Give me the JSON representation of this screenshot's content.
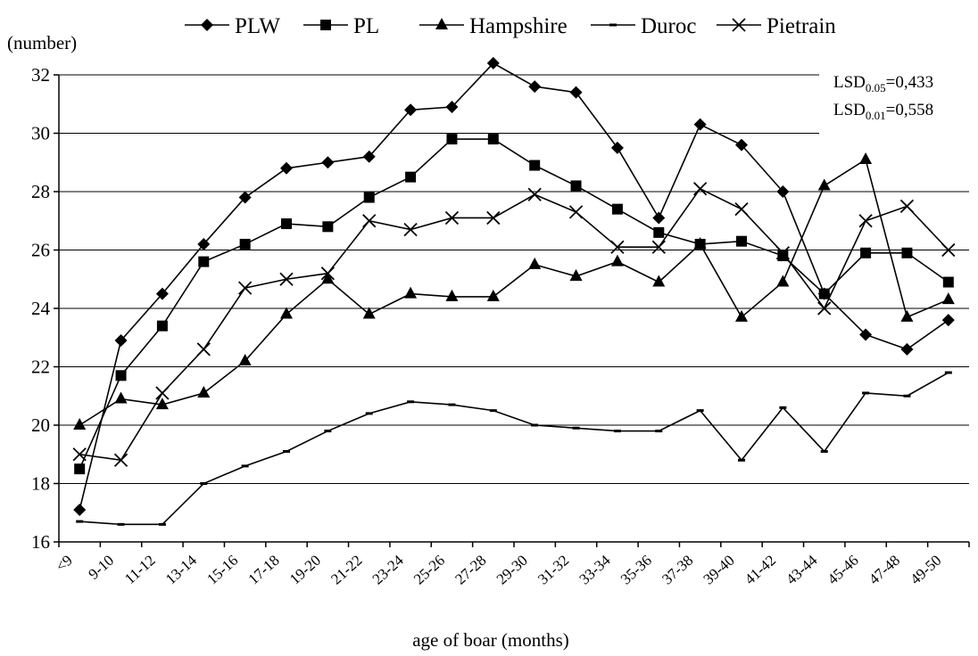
{
  "chart_data": {
    "type": "line",
    "ylabel": "(number)",
    "xlabel": "age of boar (months)",
    "ylim": [
      16,
      32
    ],
    "yticks": [
      16,
      18,
      20,
      22,
      24,
      26,
      28,
      30,
      32
    ],
    "grid": true,
    "legend_position": "top",
    "categories": [
      "<9",
      "9-10",
      "11-12",
      "13-14",
      "15-16",
      "17-18",
      "19-20",
      "21-22",
      "23-24",
      "25-26",
      "27-28",
      "29-30",
      "31-32",
      "33-34",
      "35-36",
      "37-38",
      "39-40",
      "41-42",
      "43-44",
      "45-46",
      "47-48",
      "49-50"
    ],
    "x_tick_labels": [
      "<9",
      "9-10",
      "11-12",
      "13-14",
      "15-16",
      "17-18",
      "19-20",
      "21-22",
      "23-24",
      "25-26",
      "27-28",
      "29-30",
      "31-32",
      "33-34",
      "35-36",
      "37-38",
      "39-40",
      "41-42",
      "43-44",
      "45-46",
      "47-48",
      "49-50"
    ],
    "series": [
      {
        "name": "PLW",
        "marker": "diamond",
        "values": [
          17.1,
          22.9,
          24.5,
          26.2,
          27.8,
          28.8,
          29.0,
          29.2,
          30.8,
          30.9,
          32.4,
          31.6,
          31.4,
          29.5,
          27.1,
          30.3,
          29.6,
          28.0,
          24.5,
          23.1,
          22.6,
          23.6
        ]
      },
      {
        "name": "PL",
        "marker": "square",
        "values": [
          18.5,
          21.7,
          23.4,
          25.6,
          26.2,
          26.9,
          26.8,
          27.8,
          28.5,
          29.8,
          29.8,
          28.9,
          28.2,
          27.4,
          26.6,
          26.2,
          26.3,
          25.8,
          24.5,
          25.9,
          25.9,
          24.9
        ]
      },
      {
        "name": "Hampshire",
        "marker": "triangle",
        "values": [
          20.0,
          20.9,
          20.7,
          21.1,
          22.2,
          23.8,
          25.0,
          23.8,
          24.5,
          24.4,
          24.4,
          25.5,
          25.1,
          25.6,
          24.9,
          26.2,
          23.7,
          24.9,
          28.2,
          29.1,
          23.7,
          24.3
        ]
      },
      {
        "name": "Duroc",
        "marker": "dash",
        "values": [
          16.7,
          16.6,
          16.6,
          18.0,
          18.6,
          19.1,
          19.8,
          20.4,
          20.8,
          20.7,
          20.5,
          20.0,
          19.9,
          19.8,
          19.8,
          20.5,
          18.8,
          20.6,
          19.1,
          21.1,
          21.0,
          21.8
        ]
      },
      {
        "name": "Pietrain",
        "marker": "x",
        "values": [
          19.0,
          18.8,
          21.1,
          22.6,
          24.7,
          25.0,
          25.2,
          27.0,
          26.7,
          27.1,
          27.1,
          27.9,
          27.3,
          26.1,
          26.1,
          28.1,
          27.4,
          25.9,
          24.0,
          27.0,
          27.5,
          26.0
        ]
      }
    ],
    "annotations": [
      {
        "main": "LSD",
        "sub": "0.05",
        "value": "=0,433"
      },
      {
        "main": "LSD",
        "sub": "0.01",
        "value": "=0,558"
      }
    ],
    "colors": {
      "line": "#000000",
      "grid": "#000000",
      "background": "#ffffff"
    }
  }
}
